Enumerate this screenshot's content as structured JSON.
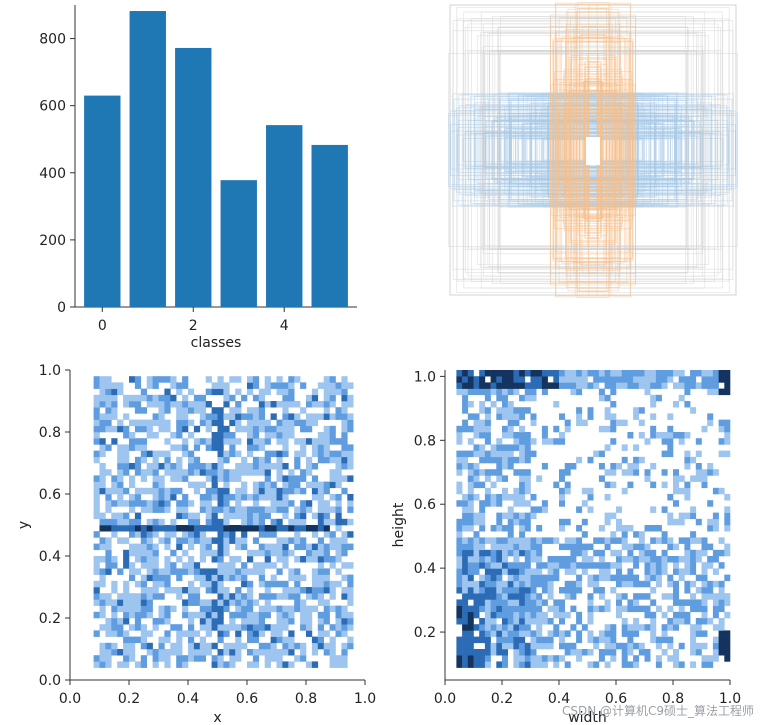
{
  "chart_data": [
    {
      "type": "bar",
      "xlabel": "classes",
      "ylabel": "",
      "categories": [
        0,
        1,
        2,
        3,
        4,
        5
      ],
      "values": [
        630,
        882,
        772,
        378,
        542,
        483
      ],
      "xlim": [
        -0.6,
        5.6
      ],
      "ylim": [
        0,
        900
      ],
      "xticks": [
        0,
        2,
        4
      ],
      "yticks": [
        0,
        200,
        400,
        600,
        800
      ],
      "color": "#1f77b4"
    },
    {
      "type": "scatter",
      "description": "overlaid label boxes",
      "colors": {
        "width_boxes": "#a6c8e6",
        "height_boxes": "#f5c08e",
        "outline": "#c9c9c9"
      }
    },
    {
      "type": "heatmap",
      "xlabel": "x",
      "ylabel": "y",
      "xlim": [
        0,
        1
      ],
      "ylim": [
        0,
        1
      ],
      "xticks": [
        0.0,
        0.2,
        0.4,
        0.6,
        0.8,
        1.0
      ],
      "yticks": [
        0.0,
        0.2,
        0.4,
        0.6,
        0.8,
        1.0
      ],
      "colormap": [
        "#9ec5ef",
        "#5f9de0",
        "#2c6bb5",
        "#14345f"
      ]
    },
    {
      "type": "heatmap",
      "xlabel": "width",
      "ylabel": "height",
      "xlim": [
        0,
        1
      ],
      "ylim": [
        0.05,
        1.02
      ],
      "xticks": [
        0.0,
        0.2,
        0.4,
        0.6,
        0.8,
        1.0
      ],
      "yticks": [
        0.2,
        0.4,
        0.6,
        0.8,
        1.0
      ],
      "colormap": [
        "#9ec5ef",
        "#5f9de0",
        "#2c6bb5",
        "#14345f"
      ]
    }
  ],
  "watermark": "CSDN @计算机C9硕士_算法工程师"
}
